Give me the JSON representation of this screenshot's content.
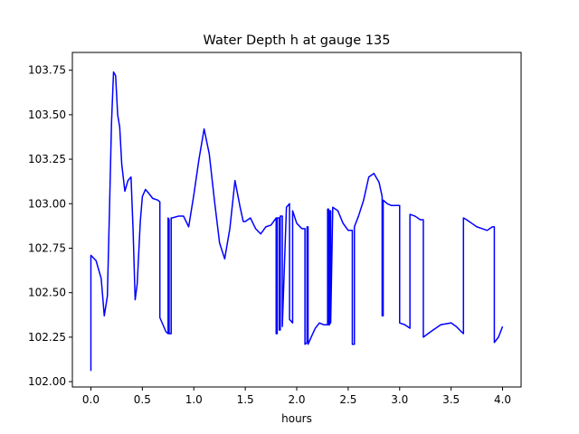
{
  "chart_data": {
    "type": "line",
    "title": "Water Depth h at gauge 135",
    "xlabel": "hours",
    "ylabel": "",
    "xlim": [
      -0.18,
      4.18
    ],
    "ylim": [
      101.97,
      103.85
    ],
    "xticks": [
      0.0,
      0.5,
      1.0,
      1.5,
      2.0,
      2.5,
      3.0,
      3.5,
      4.0
    ],
    "xtick_labels": [
      "0.0",
      "0.5",
      "1.0",
      "1.5",
      "2.0",
      "2.5",
      "3.0",
      "3.5",
      "4.0"
    ],
    "yticks": [
      102.0,
      102.25,
      102.5,
      102.75,
      103.0,
      103.25,
      103.5,
      103.75
    ],
    "ytick_labels": [
      "102.00",
      "102.25",
      "102.50",
      "102.75",
      "103.00",
      "103.25",
      "103.50",
      "103.75"
    ],
    "grid": false,
    "series": [
      {
        "name": "",
        "color": "#0000ff",
        "x": [
          0.0,
          0.0,
          0.05,
          0.1,
          0.13,
          0.16,
          0.18,
          0.2,
          0.22,
          0.24,
          0.26,
          0.28,
          0.3,
          0.33,
          0.36,
          0.39,
          0.41,
          0.43,
          0.45,
          0.48,
          0.5,
          0.53,
          0.56,
          0.6,
          0.65,
          0.67,
          0.67,
          0.7,
          0.73,
          0.75,
          0.75,
          0.76,
          0.76,
          0.78,
          0.78,
          0.79,
          0.79,
          0.85,
          0.9,
          0.95,
          1.0,
          1.05,
          1.1,
          1.15,
          1.2,
          1.25,
          1.3,
          1.35,
          1.4,
          1.45,
          1.48,
          1.5,
          1.55,
          1.6,
          1.65,
          1.7,
          1.75,
          1.8,
          1.8,
          1.81,
          1.81,
          1.83,
          1.83,
          1.84,
          1.84,
          1.86,
          1.86,
          1.9,
          1.93,
          1.93,
          1.96,
          1.96,
          2.0,
          2.05,
          2.08,
          2.08,
          2.1,
          2.1,
          2.11,
          2.11,
          2.14,
          2.18,
          2.22,
          2.26,
          2.3,
          2.3,
          2.31,
          2.31,
          2.32,
          2.32,
          2.33,
          2.33,
          2.35,
          2.4,
          2.45,
          2.5,
          2.54,
          2.54,
          2.56,
          2.56,
          2.6,
          2.65,
          2.7,
          2.75,
          2.8,
          2.83,
          2.83,
          2.84,
          2.84,
          2.88,
          2.92,
          2.97,
          3.0,
          3.0,
          3.05,
          3.1,
          3.1,
          3.15,
          3.2,
          3.23,
          3.23,
          3.3,
          3.4,
          3.5,
          3.55,
          3.6,
          3.62,
          3.62,
          3.65,
          3.7,
          3.75,
          3.8,
          3.85,
          3.9,
          3.92,
          3.92,
          3.96,
          4.0
        ],
        "y": [
          102.06,
          102.71,
          102.68,
          102.58,
          102.37,
          102.48,
          102.95,
          103.45,
          103.74,
          103.72,
          103.5,
          103.43,
          103.22,
          103.07,
          103.13,
          103.15,
          102.85,
          102.46,
          102.55,
          102.9,
          103.04,
          103.08,
          103.06,
          103.03,
          103.02,
          103.01,
          102.36,
          102.32,
          102.28,
          102.27,
          102.92,
          102.91,
          102.27,
          102.27,
          102.92,
          102.92,
          102.92,
          102.93,
          102.93,
          102.87,
          103.05,
          103.25,
          103.42,
          103.28,
          103.02,
          102.78,
          102.69,
          102.86,
          103.13,
          102.98,
          102.9,
          102.9,
          102.92,
          102.86,
          102.83,
          102.87,
          102.88,
          102.92,
          102.27,
          102.27,
          102.92,
          102.92,
          102.29,
          102.29,
          102.93,
          102.93,
          102.31,
          102.98,
          103.0,
          102.35,
          102.33,
          102.96,
          102.89,
          102.86,
          102.86,
          102.21,
          102.22,
          102.87,
          102.87,
          102.21,
          102.25,
          102.3,
          102.33,
          102.32,
          102.32,
          102.97,
          102.97,
          102.32,
          102.32,
          102.96,
          102.96,
          102.33,
          102.98,
          102.96,
          102.89,
          102.85,
          102.85,
          102.21,
          102.21,
          102.87,
          102.93,
          103.02,
          103.15,
          103.17,
          103.12,
          103.04,
          102.37,
          102.37,
          103.02,
          103.0,
          102.99,
          102.99,
          102.99,
          102.33,
          102.32,
          102.3,
          102.94,
          102.93,
          102.91,
          102.91,
          102.25,
          102.28,
          102.32,
          102.33,
          102.31,
          102.28,
          102.27,
          102.92,
          102.91,
          102.89,
          102.87,
          102.86,
          102.85,
          102.87,
          102.87,
          102.22,
          102.25,
          102.31
        ]
      }
    ]
  }
}
